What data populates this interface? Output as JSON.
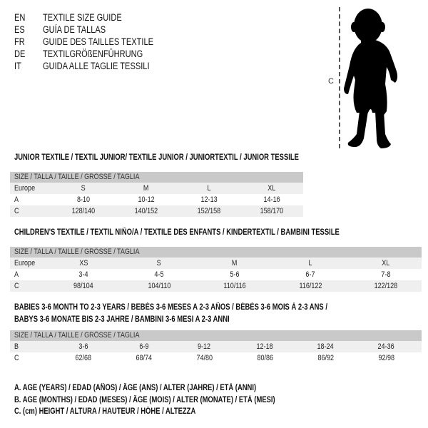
{
  "languages": [
    {
      "code": "EN",
      "title": "TEXTILE SIZE GUIDE"
    },
    {
      "code": "ES",
      "title": "GUÍA DE TALLAS"
    },
    {
      "code": "FR",
      "title": "GUIDE DES TAILLES TEXTILE"
    },
    {
      "code": "DE",
      "title": "TEXTILGRÖßENFÜHRUNG"
    },
    {
      "code": "IT",
      "title": "GUIDA ALLE TAGLIE TESSILI"
    }
  ],
  "figure": {
    "height_label": "C",
    "icon": "child-silhouette"
  },
  "junior": {
    "heading": "JUNIOR TEXTILE / TEXTIL JUNIOR/ TEXTILE JUNIOR / JUNIORTEXTIL / JUNIOR TESSILE",
    "header": "SIZE / TALLA / TAILLE / GRÖSSE / TAGLIA",
    "rows": [
      [
        "Europe",
        "S",
        "M",
        "L",
        "XL"
      ],
      [
        "A",
        "8-10",
        "10-12",
        "12-13",
        "14-16"
      ],
      [
        "C",
        "128/140",
        "140/152",
        "152/158",
        "158/170"
      ]
    ]
  },
  "children": {
    "heading": "CHILDREN'S TEXTILE / TEXTIL NIÑO/A / TEXTILE DES ENFANTS / KINDERTEXTIL / BAMBINI TESSILE",
    "header": "SIZE / TALLA / TAILLE / GRÖSSE / TAGLIA",
    "rows": [
      [
        "Europe",
        "XS",
        "S",
        "M",
        "L",
        "XL"
      ],
      [
        "A",
        "3-4",
        "4-5",
        "5-6",
        "6-7",
        "7-8"
      ],
      [
        "C",
        "98/104",
        "104/110",
        "110/116",
        "116/122",
        "122/128"
      ]
    ]
  },
  "babies": {
    "heading_line1": "BABIES 3-6 MONTH TO 2-3 YEARS / BEBÉS 3-6 MESES A 2-3 AÑOS / BÉBÉS 3-6 MOIS À 2-3 ANS /",
    "heading_line2": "BABYS 3-6 MONATE BIS 2-3 JAHRE / BAMBINI 3-6 MESI A 2-3 ANNI",
    "header": "SIZE / TALLA / TAILLE / GRÖSSE / TAGLIA",
    "rows": [
      [
        "B",
        "3-6",
        "6-9",
        "9-12",
        "12-18",
        "18-24",
        "24-36"
      ],
      [
        "C",
        "62/68",
        "68/74",
        "74/80",
        "80/86",
        "86/92",
        "92/98"
      ]
    ]
  },
  "legend": [
    "A. AGE (YEARS) / EDAD (AÑOS) / ÂGE (ANS) / ALTER (JAHRE) / ETÀ (ANNI)",
    "B. AGE (MONTHS) / EDAD (MESES) / ÂGE (MOIS) / ALTER (MONATE) / ETÀ (MESI)",
    "C. (cm) HEIGHT / ALTURA / HAUTEUR / HÖHE / ALTEZZA"
  ]
}
